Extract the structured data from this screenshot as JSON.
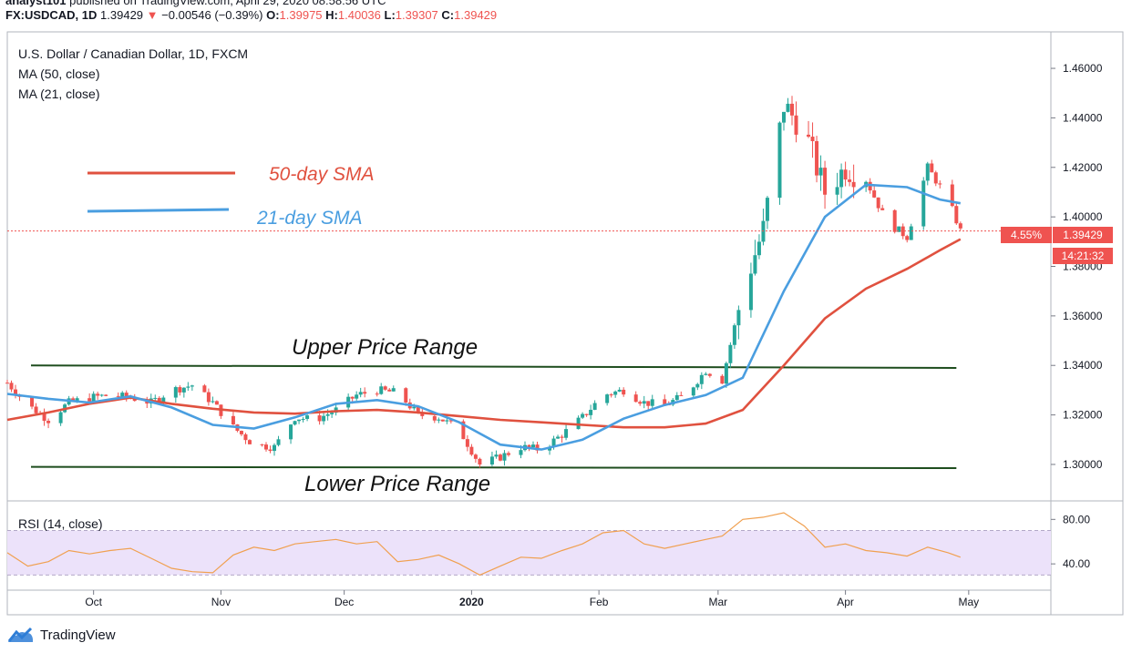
{
  "header": {
    "published_line": "analyst101 published on TradingView.com, April 29, 2020 08:58:56 UTC",
    "published_author": "analyst101",
    "symbol": "FX:USDCAD, 1D",
    "last": "1.39429",
    "change_arrow": "▼",
    "change": "−0.00546 (−0.39%)",
    "o_label": "O:",
    "o_val": "1.39975",
    "h_label": "H:",
    "h_val": "1.40036",
    "l_label": "L:",
    "l_val": "1.39307",
    "c_label": "C:",
    "c_val": "1.39429"
  },
  "legend": {
    "title": "U.S. Dollar / Canadian Dollar, 1D, FXCM",
    "ma50": "MA (50, close)",
    "ma21": "MA (21, close)",
    "rsi": "RSI (14, close)"
  },
  "colors": {
    "bull": "#26a69a",
    "bear": "#ef5350",
    "ma50": "#e0513f",
    "ma21": "#4a9ee0",
    "rsi": "#f0a050",
    "rsi_band": "#ece2fa",
    "range_line": "#1e4d1e",
    "annot_red": "#e0513f",
    "annot_blue": "#4a9ee0"
  },
  "annotations": {
    "sma50_label": "50-day SMA",
    "sma21_label": "21-day SMA",
    "upper_label": "Upper Price Range",
    "lower_label": "Lower Price Range"
  },
  "price_badges": {
    "pct": "4.55%",
    "price": "1.39429",
    "countdown": "14:21:32"
  },
  "footer": {
    "brand": "TradingView"
  },
  "chart_data": [
    {
      "type": "candlestick",
      "title": "U.S. Dollar / Canadian Dollar, 1D, FXCM",
      "y_axis_ticks": [
        "1.30000",
        "1.32000",
        "1.34000",
        "1.36000",
        "1.38000",
        "1.40000",
        "1.42000",
        "1.44000",
        "1.46000"
      ],
      "ylim": [
        1.286,
        1.474
      ],
      "x_axis_ticks": [
        "Oct",
        "Nov",
        "Dec",
        "2020",
        "Feb",
        "Mar",
        "Apr",
        "May"
      ],
      "x_range": [
        "2019-09-10",
        "2020-05-21"
      ],
      "series_close": [
        [
          "2019-09-10",
          1.333
        ],
        [
          "2019-09-15",
          1.324
        ],
        [
          "2019-09-20",
          1.318
        ],
        [
          "2019-09-25",
          1.325
        ],
        [
          "2019-09-30",
          1.327
        ],
        [
          "2019-10-05",
          1.328
        ],
        [
          "2019-10-10",
          1.327
        ],
        [
          "2019-10-15",
          1.325
        ],
        [
          "2019-10-20",
          1.33
        ],
        [
          "2019-10-25",
          1.332
        ],
        [
          "2019-10-30",
          1.325
        ],
        [
          "2019-11-04",
          1.315
        ],
        [
          "2019-11-09",
          1.308
        ],
        [
          "2019-11-14",
          1.307
        ],
        [
          "2019-11-19",
          1.319
        ],
        [
          "2019-11-24",
          1.318
        ],
        [
          "2019-11-29",
          1.322
        ],
        [
          "2019-12-04",
          1.328
        ],
        [
          "2019-12-09",
          1.33
        ],
        [
          "2019-12-14",
          1.329
        ],
        [
          "2019-12-19",
          1.32
        ],
        [
          "2019-12-24",
          1.319
        ],
        [
          "2019-12-29",
          1.314
        ],
        [
          "2020-01-03",
          1.3
        ],
        [
          "2020-01-08",
          1.303
        ],
        [
          "2020-01-13",
          1.307
        ],
        [
          "2020-01-18",
          1.306
        ],
        [
          "2020-01-23",
          1.312
        ],
        [
          "2020-01-28",
          1.319
        ],
        [
          "2020-02-02",
          1.328
        ],
        [
          "2020-02-07",
          1.33
        ],
        [
          "2020-02-12",
          1.325
        ],
        [
          "2020-02-17",
          1.324
        ],
        [
          "2020-02-22",
          1.328
        ],
        [
          "2020-02-27",
          1.338
        ],
        [
          "2020-03-02",
          1.334
        ],
        [
          "2020-03-07",
          1.37
        ],
        [
          "2020-03-12",
          1.395
        ],
        [
          "2020-03-17",
          1.445
        ],
        [
          "2020-03-22",
          1.435
        ],
        [
          "2020-03-27",
          1.41
        ],
        [
          "2020-04-01",
          1.42
        ],
        [
          "2020-04-06",
          1.415
        ],
        [
          "2020-04-11",
          1.398
        ],
        [
          "2020-04-16",
          1.392
        ],
        [
          "2020-04-21",
          1.42
        ],
        [
          "2020-04-26",
          1.407
        ],
        [
          "2020-04-29",
          1.3943
        ]
      ],
      "ma50": [
        [
          "2019-09-10",
          1.318
        ],
        [
          "2019-09-20",
          1.321
        ],
        [
          "2019-09-30",
          1.3245
        ],
        [
          "2019-10-10",
          1.327
        ],
        [
          "2019-10-20",
          1.3245
        ],
        [
          "2019-10-30",
          1.3225
        ],
        [
          "2019-11-09",
          1.321
        ],
        [
          "2019-11-19",
          1.3205
        ],
        [
          "2019-11-29",
          1.3215
        ],
        [
          "2019-12-09",
          1.322
        ],
        [
          "2019-12-19",
          1.321
        ],
        [
          "2019-12-29",
          1.3195
        ],
        [
          "2020-01-08",
          1.318
        ],
        [
          "2020-01-18",
          1.317
        ],
        [
          "2020-01-28",
          1.316
        ],
        [
          "2020-02-07",
          1.315
        ],
        [
          "2020-02-17",
          1.315
        ],
        [
          "2020-02-27",
          1.3165
        ],
        [
          "2020-03-07",
          1.322
        ],
        [
          "2020-03-17",
          1.34
        ],
        [
          "2020-03-27",
          1.359
        ],
        [
          "2020-04-06",
          1.371
        ],
        [
          "2020-04-16",
          1.379
        ],
        [
          "2020-04-24",
          1.3865
        ],
        [
          "2020-04-29",
          1.391
        ]
      ],
      "ma21": [
        [
          "2019-09-10",
          1.3285
        ],
        [
          "2019-09-20",
          1.3265
        ],
        [
          "2019-09-30",
          1.325
        ],
        [
          "2019-10-10",
          1.3275
        ],
        [
          "2019-10-20",
          1.323
        ],
        [
          "2019-10-30",
          1.316
        ],
        [
          "2019-11-09",
          1.3145
        ],
        [
          "2019-11-19",
          1.319
        ],
        [
          "2019-11-29",
          1.3245
        ],
        [
          "2019-12-09",
          1.326
        ],
        [
          "2019-12-19",
          1.3235
        ],
        [
          "2019-12-29",
          1.317
        ],
        [
          "2020-01-08",
          1.308
        ],
        [
          "2020-01-18",
          1.306
        ],
        [
          "2020-01-28",
          1.31
        ],
        [
          "2020-02-07",
          1.3185
        ],
        [
          "2020-02-17",
          1.324
        ],
        [
          "2020-02-27",
          1.328
        ],
        [
          "2020-03-07",
          1.335
        ],
        [
          "2020-03-17",
          1.37
        ],
        [
          "2020-03-27",
          1.4
        ],
        [
          "2020-04-06",
          1.413
        ],
        [
          "2020-04-16",
          1.412
        ],
        [
          "2020-04-24",
          1.407
        ],
        [
          "2020-04-29",
          1.4055
        ]
      ],
      "range_lines": [
        {
          "name": "Upper Price Range",
          "from": [
            "2019-09-10",
            1.34
          ],
          "to": [
            "2020-04-28",
            1.339
          ]
        },
        {
          "name": "Lower Price Range",
          "from": [
            "2019-09-10",
            1.299
          ],
          "to": [
            "2020-04-28",
            1.2985
          ]
        }
      ],
      "current_price": 1.39429
    },
    {
      "type": "line",
      "title": "RSI (14, close)",
      "y_axis_ticks": [
        "40.00",
        "80.00"
      ],
      "ylim": [
        18,
        95
      ],
      "band": [
        30,
        70
      ],
      "series": [
        {
          "name": "RSI (14, close)",
          "values": [
            [
              "2019-09-10",
              50
            ],
            [
              "2019-09-15",
              38
            ],
            [
              "2019-09-20",
              42
            ],
            [
              "2019-09-25",
              52
            ],
            [
              "2019-09-30",
              49
            ],
            [
              "2019-10-05",
              52
            ],
            [
              "2019-10-10",
              54
            ],
            [
              "2019-10-15",
              45
            ],
            [
              "2019-10-20",
              36
            ],
            [
              "2019-10-25",
              33
            ],
            [
              "2019-10-30",
              32
            ],
            [
              "2019-11-04",
              48
            ],
            [
              "2019-11-09",
              55
            ],
            [
              "2019-11-14",
              52
            ],
            [
              "2019-11-19",
              58
            ],
            [
              "2019-11-24",
              60
            ],
            [
              "2019-11-29",
              62
            ],
            [
              "2019-12-04",
              58
            ],
            [
              "2019-12-09",
              60
            ],
            [
              "2019-12-14",
              42
            ],
            [
              "2019-12-19",
              44
            ],
            [
              "2019-12-24",
              48
            ],
            [
              "2019-12-29",
              40
            ],
            [
              "2020-01-03",
              30
            ],
            [
              "2020-01-08",
              38
            ],
            [
              "2020-01-13",
              46
            ],
            [
              "2020-01-18",
              45
            ],
            [
              "2020-01-23",
              52
            ],
            [
              "2020-01-28",
              58
            ],
            [
              "2020-02-02",
              68
            ],
            [
              "2020-02-07",
              70
            ],
            [
              "2020-02-12",
              58
            ],
            [
              "2020-02-17",
              54
            ],
            [
              "2020-02-22",
              58
            ],
            [
              "2020-02-27",
              62
            ],
            [
              "2020-03-02",
              65
            ],
            [
              "2020-03-07",
              80
            ],
            [
              "2020-03-12",
              82
            ],
            [
              "2020-03-17",
              86
            ],
            [
              "2020-03-22",
              74
            ],
            [
              "2020-03-27",
              55
            ],
            [
              "2020-04-01",
              58
            ],
            [
              "2020-04-06",
              52
            ],
            [
              "2020-04-11",
              50
            ],
            [
              "2020-04-16",
              47
            ],
            [
              "2020-04-21",
              55
            ],
            [
              "2020-04-26",
              50
            ],
            [
              "2020-04-29",
              46
            ]
          ]
        }
      ]
    }
  ]
}
